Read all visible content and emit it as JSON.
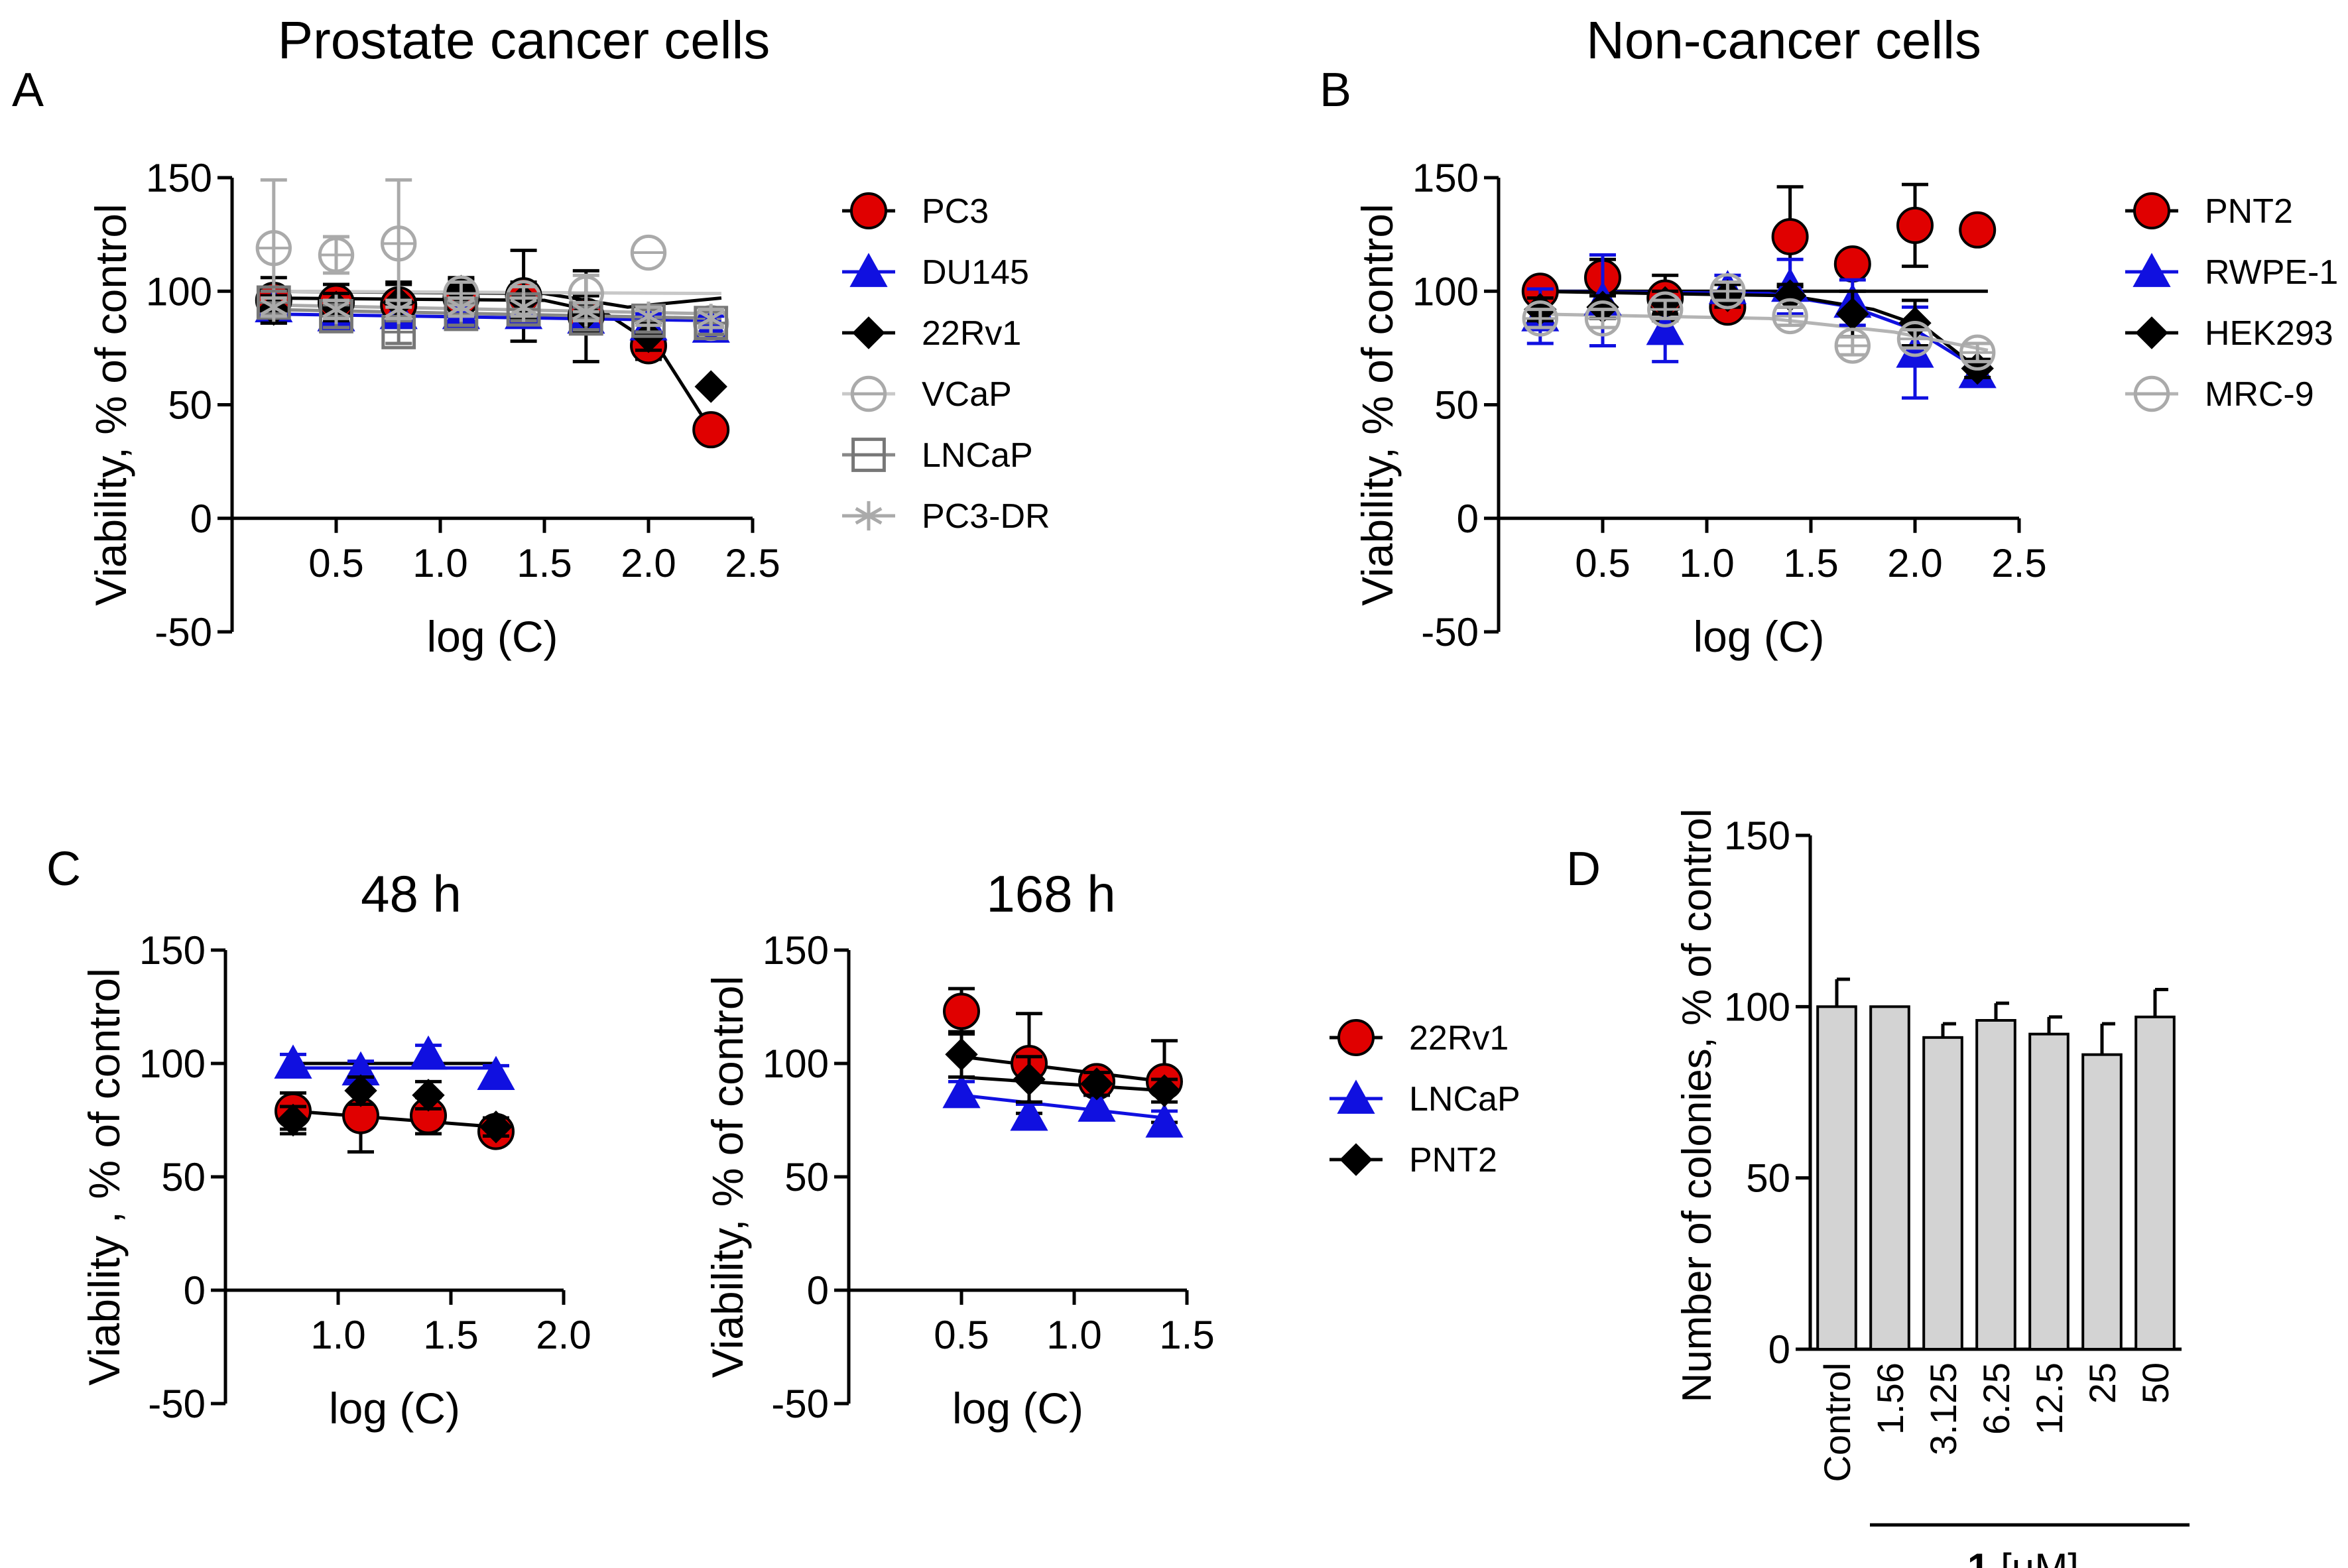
{
  "headings": {
    "left": "Prostate cancer cells",
    "right": "Non-cancer cells"
  },
  "panel_letters": [
    "A",
    "B",
    "C",
    "D"
  ],
  "chart_data": [
    {
      "id": "A",
      "type": "scatter",
      "title": "",
      "xlabel": "log (C)",
      "ylabel": "Viability, % of control",
      "xlim": [
        0,
        2.5
      ],
      "ylim": [
        -50,
        150
      ],
      "xticks": [
        "0.5",
        "1.0",
        "1.5",
        "2.0",
        "2.5"
      ],
      "yticks": [
        "-50",
        "0",
        "50",
        "100",
        "150"
      ],
      "legend": [
        "PC3",
        "DU145",
        "22Rv1",
        "VCaP",
        "LNCaP",
        "PC3-DR"
      ],
      "series": [
        {
          "name": "PC3",
          "marker": "circle-red",
          "color": "#e00000",
          "line": "#000000",
          "x": [
            0.2,
            0.5,
            0.8,
            1.1,
            1.4,
            1.7,
            2.0,
            2.3
          ],
          "y": [
            96,
            95,
            94,
            97,
            98,
            89,
            76,
            39
          ],
          "err": [
            10,
            8,
            10,
            8,
            20,
            20,
            6,
            0
          ],
          "fit": [
            [
              0.15,
              97
            ],
            [
              1.5,
              96
            ],
            [
              1.8,
              90
            ],
            [
              2.05,
              75
            ],
            [
              2.3,
              39
            ]
          ]
        },
        {
          "name": "DU145",
          "marker": "triangle-blue",
          "color": "#1010e0",
          "line": "#1010e0",
          "x": [
            0.2,
            0.5,
            0.8,
            1.1,
            1.4,
            1.7,
            2.0,
            2.3
          ],
          "y": [
            93,
            89,
            90,
            90,
            90,
            88,
            85,
            84
          ],
          "err": [
            5,
            5,
            5,
            5,
            5,
            5,
            5,
            5
          ],
          "fit": [
            [
              0.15,
              90
            ],
            [
              2.35,
              87
            ]
          ]
        },
        {
          "name": "22Rv1",
          "marker": "diamond-black",
          "color": "#000000",
          "line": "#000000",
          "x": [
            0.2,
            0.5,
            0.8,
            1.1,
            1.4,
            1.7,
            2.0,
            2.3
          ],
          "y": [
            92,
            93,
            95,
            100,
            96,
            90,
            80,
            58
          ],
          "err": [
            6,
            6,
            8,
            6,
            8,
            8,
            6,
            0
          ],
          "fit": [
            [
              0.15,
              100
            ],
            [
              1.5,
              99
            ],
            [
              1.9,
              93
            ],
            [
              2.35,
              97
            ]
          ]
        },
        {
          "name": "VCaP",
          "marker": "circle-open-gray",
          "color": "#aaaaaa",
          "line": "#c8c8c8",
          "x": [
            0.2,
            0.5,
            0.8,
            1.1,
            1.4,
            1.7,
            2.0,
            2.3
          ],
          "y": [
            119,
            116,
            121,
            99,
            97,
            99,
            117,
            86
          ],
          "err": [
            30,
            8,
            28,
            5,
            5,
            8,
            0,
            5
          ],
          "fit": [
            [
              0.15,
              100
            ],
            [
              2.35,
              99
            ]
          ]
        },
        {
          "name": "LNCaP",
          "marker": "square-open-gray",
          "color": "#777777",
          "line": "#888888",
          "x": [
            0.2,
            0.5,
            0.8,
            1.1,
            1.4,
            1.7,
            2.0,
            2.3
          ],
          "y": [
            95,
            89,
            82,
            90,
            92,
            88,
            87,
            86
          ],
          "err": [
            5,
            5,
            5,
            5,
            5,
            5,
            5,
            5
          ],
          "fit": [
            [
              0.15,
              92
            ],
            [
              2.35,
              88
            ]
          ]
        },
        {
          "name": "PC3-DR",
          "marker": "asterisk-gray",
          "color": "#aaaaaa",
          "line": "#aaaaaa",
          "x": [
            0.2,
            0.5,
            0.8,
            1.1,
            1.4,
            1.7,
            2.0,
            2.3
          ],
          "y": [
            93,
            92,
            92,
            93,
            93,
            91,
            89,
            88
          ],
          "err": [
            4,
            4,
            4,
            4,
            4,
            4,
            4,
            4
          ],
          "fit": [
            [
              0.15,
              94
            ],
            [
              2.35,
              90
            ]
          ]
        }
      ]
    },
    {
      "id": "B",
      "type": "scatter",
      "title": "",
      "xlabel": "log (C)",
      "ylabel": "Viability,  % of control",
      "xlim": [
        0,
        2.5
      ],
      "ylim": [
        -50,
        150
      ],
      "xticks": [
        "0.5",
        "1.0",
        "1.5",
        "2.0",
        "2.5"
      ],
      "yticks": [
        "-50",
        "0",
        "50",
        "100",
        "150"
      ],
      "legend": [
        "PNT2",
        "RWPE-1",
        "HEK293",
        "MRC-9"
      ],
      "series": [
        {
          "name": "PNT2",
          "marker": "circle-red",
          "color": "#e00000",
          "line": "#000000",
          "x": [
            0.2,
            0.5,
            0.8,
            1.1,
            1.4,
            1.7,
            2.0,
            2.3
          ],
          "y": [
            100,
            106,
            97,
            93,
            124,
            112,
            129,
            127
          ],
          "err": [
            5,
            8,
            10,
            5,
            22,
            5,
            18,
            0
          ],
          "fit": [
            [
              0.15,
              100
            ],
            [
              2.35,
              100
            ]
          ]
        },
        {
          "name": "RWPE-1",
          "marker": "triangle-blue",
          "color": "#1010e0",
          "line": "#1010e0",
          "x": [
            0.2,
            0.5,
            0.8,
            1.1,
            1.4,
            1.7,
            2.0,
            2.3
          ],
          "y": [
            89,
            96,
            83,
            101,
            102,
            95,
            73,
            64
          ],
          "err": [
            12,
            20,
            14,
            6,
            12,
            10,
            20,
            4
          ],
          "fit": [
            [
              0.15,
              100
            ],
            [
              1.3,
              99
            ],
            [
              1.7,
              93
            ],
            [
              2.0,
              83
            ],
            [
              2.3,
              66
            ]
          ]
        },
        {
          "name": "HEK293",
          "marker": "diamond-black",
          "color": "#000000",
          "line": "#000000",
          "x": [
            0.2,
            0.5,
            0.8,
            1.1,
            1.4,
            1.7,
            2.0,
            2.3
          ],
          "y": [
            92,
            93,
            95,
            98,
            98,
            90,
            86,
            66
          ],
          "err": [
            5,
            5,
            5,
            5,
            5,
            10,
            10,
            4
          ],
          "fit": [
            [
              0.15,
              100
            ],
            [
              1.4,
              98
            ],
            [
              1.8,
              92
            ],
            [
              2.05,
              84
            ],
            [
              2.3,
              66
            ]
          ]
        },
        {
          "name": "MRC-9",
          "marker": "circle-open-gray",
          "color": "#aaaaaa",
          "line": "#b4b4b4",
          "x": [
            0.2,
            0.5,
            0.8,
            1.1,
            1.4,
            1.7,
            2.0,
            2.3
          ],
          "y": [
            88,
            88,
            92,
            100,
            89,
            76,
            79,
            73
          ],
          "err": [
            4,
            4,
            4,
            4,
            4,
            4,
            4,
            4
          ],
          "fit": [
            [
              0.15,
              90
            ],
            [
              1.3,
              88
            ],
            [
              1.9,
              82
            ],
            [
              2.35,
              74
            ]
          ]
        }
      ]
    },
    {
      "id": "C1",
      "type": "scatter",
      "title": "48 h",
      "xlabel": "log (C)",
      "ylabel": "Viability , % of control",
      "xlim": [
        0.5,
        2.0
      ],
      "ylim": [
        -50,
        150
      ],
      "xticks": [
        "1.0",
        "1.5",
        "2.0"
      ],
      "yticks": [
        "-50",
        "0",
        "50",
        "100",
        "150"
      ],
      "legend": [],
      "series": [
        {
          "name": "22Rv1",
          "marker": "circle-red",
          "color": "#e00000",
          "line": "#000000",
          "x": [
            0.8,
            1.1,
            1.4,
            1.7
          ],
          "y": [
            79,
            77,
            77,
            70
          ],
          "err": [
            8,
            16,
            8,
            4
          ],
          "fit": [
            [
              0.8,
              79
            ],
            [
              1.7,
              72
            ]
          ]
        },
        {
          "name": "LNCaP",
          "marker": "triangle-blue",
          "color": "#1010e0",
          "line": "#1010e0",
          "x": [
            0.8,
            1.1,
            1.4,
            1.7
          ],
          "y": [
            100,
            97,
            104,
            95
          ],
          "err": [
            4,
            4,
            4,
            4
          ],
          "fit": [
            [
              0.8,
              98
            ],
            [
              1.7,
              98
            ]
          ]
        },
        {
          "name": "PNT2",
          "marker": "diamond-black",
          "color": "#000000",
          "line": "#000000",
          "x": [
            0.8,
            1.1,
            1.4,
            1.7
          ],
          "y": [
            75,
            88,
            86,
            72
          ],
          "err": [
            6,
            6,
            6,
            4
          ],
          "fit": [
            [
              0.8,
              100
            ],
            [
              1.7,
              100
            ]
          ]
        }
      ]
    },
    {
      "id": "C2",
      "type": "scatter",
      "title": "168 h",
      "xlabel": "log (C)",
      "ylabel": "Viability,  % of control",
      "xlim": [
        0,
        1.5
      ],
      "ylim": [
        -50,
        150
      ],
      "xticks": [
        "0.5",
        "1.0",
        "1.5"
      ],
      "yticks": [
        "-50",
        "0",
        "50",
        "100",
        "150"
      ],
      "legend": [
        "22Rv1",
        "LNCaP",
        "PNT2"
      ],
      "series": [
        {
          "name": "22Rv1",
          "marker": "circle-red",
          "color": "#e00000",
          "line": "#000000",
          "x": [
            0.5,
            0.8,
            1.1,
            1.4
          ],
          "y": [
            123,
            100,
            92,
            92
          ],
          "err": [
            10,
            22,
            5,
            18
          ],
          "fit": [
            [
              0.5,
              103
            ],
            [
              1.4,
              92
            ]
          ]
        },
        {
          "name": "LNCaP",
          "marker": "triangle-blue",
          "color": "#1010e0",
          "line": "#1010e0",
          "x": [
            0.5,
            0.8,
            1.1,
            1.4
          ],
          "y": [
            87,
            77,
            81,
            74
          ],
          "err": [
            5,
            5,
            5,
            5
          ],
          "fit": [
            [
              0.5,
              86
            ],
            [
              1.4,
              76
            ]
          ]
        },
        {
          "name": "PNT2",
          "marker": "diamond-black",
          "color": "#000000",
          "line": "#000000",
          "x": [
            0.5,
            0.8,
            1.1,
            1.4
          ],
          "y": [
            104,
            93,
            91,
            88
          ],
          "err": [
            10,
            10,
            5,
            5
          ],
          "fit": [
            [
              0.5,
              94
            ],
            [
              1.4,
              88
            ]
          ]
        }
      ]
    },
    {
      "id": "D",
      "type": "bar",
      "title": "",
      "xlabel": "",
      "ylabel": "Number of colonies, % of control",
      "ylim": [
        0,
        150
      ],
      "yticks": [
        "0",
        "50",
        "100",
        "150"
      ],
      "categories": [
        "Control",
        "1.56",
        "3.125",
        "6.25",
        "12.5",
        "25",
        "50"
      ],
      "values": [
        100,
        100,
        91,
        96,
        92,
        86,
        97
      ],
      "err": [
        8,
        0,
        4,
        5,
        5,
        9,
        8
      ],
      "bar_color": "#d3d3d3",
      "group_label_bold": "1",
      "group_label_unit": "[μM]"
    }
  ]
}
